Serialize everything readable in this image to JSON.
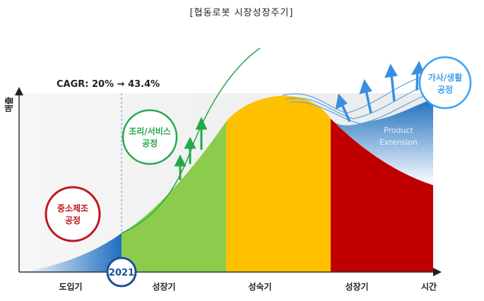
{
  "title": "[협동로봇 시장성장주기]",
  "y_axis_label": "매출",
  "x_axis_label": "시간",
  "cagr_label": "CAGR: 20% → 43.4%",
  "year_badge": "2021",
  "circles": [
    {
      "label": "중소제조\n공정",
      "color": "#c0151b"
    },
    {
      "label": "조리/서비스\n공정",
      "color": "#22a84b"
    },
    {
      "label": "가사/생활\n공정",
      "color": "#3aa0f0"
    }
  ],
  "product_extension_label": "Product\nExtension",
  "chart_data": {
    "type": "area",
    "title": "[협동로봇 시장성장주기]",
    "xlabel": "시간",
    "ylabel": "매출",
    "phases": [
      {
        "name": "도입기",
        "color": "#1e6fbf"
      },
      {
        "name": "성장기",
        "color": "#8ccc4c"
      },
      {
        "name": "성숙기",
        "color": "#ffc000"
      },
      {
        "name": "성장기",
        "color": "#c00000"
      }
    ],
    "annotations": [
      "CAGR: 20% → 43.4%",
      "2021",
      "Product Extension"
    ],
    "colors": {
      "background": "#f2f2f2",
      "axis": "#333333",
      "growth_curve": "#22a84b",
      "extension_curves": "#5aa7e0",
      "extension_arrows": "#3a8ee0",
      "growth_arrows": "#22a84b",
      "badge": "#1f4e9c",
      "dashed_line": "#5b9bd5"
    }
  }
}
